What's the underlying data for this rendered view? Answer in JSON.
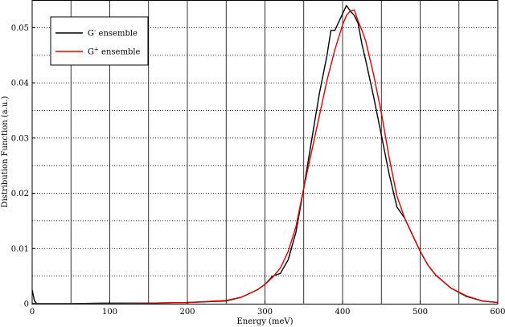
{
  "chart_data": {
    "type": "line",
    "title": "",
    "xlabel": "Energy (meV)",
    "ylabel": "Distribution Function (a.u.)",
    "xlim": [
      0,
      600
    ],
    "ylim": [
      0,
      0.055
    ],
    "x_ticks": [
      0,
      100,
      200,
      300,
      400,
      500,
      600
    ],
    "x_tick_labels": [
      "0",
      "100",
      "200",
      "300",
      "400",
      "500",
      "600"
    ],
    "y_ticks": [
      0,
      0.01,
      0.02,
      0.03,
      0.04,
      0.05
    ],
    "y_tick_labels": [
      "0",
      "0.01",
      "0.02",
      "0.03",
      "0.04",
      "0.05"
    ],
    "grid": true,
    "legend_position": "top-left",
    "series": [
      {
        "name_main": "G",
        "name_sup": "-",
        "name_rest": " ensemble",
        "color": "#000000",
        "x": [
          0,
          3,
          6,
          50,
          90,
          120,
          150,
          200,
          250,
          270,
          290,
          300,
          310,
          320,
          330,
          340,
          350,
          360,
          370,
          380,
          385,
          390,
          395,
          400,
          405,
          410,
          415,
          420,
          425,
          430,
          440,
          450,
          460,
          470,
          480,
          490,
          500,
          510,
          520,
          540,
          560,
          580,
          600
        ],
        "y": [
          0.0025,
          0.0005,
          0.0,
          0.0,
          0.0001,
          0.0001,
          0.0001,
          0.0002,
          0.0005,
          0.0012,
          0.0025,
          0.0035,
          0.005,
          0.0055,
          0.008,
          0.013,
          0.021,
          0.0295,
          0.038,
          0.045,
          0.0495,
          0.0495,
          0.051,
          0.0525,
          0.054,
          0.053,
          0.0522,
          0.0508,
          0.047,
          0.044,
          0.0375,
          0.0305,
          0.0235,
          0.0175,
          0.0155,
          0.0125,
          0.0095,
          0.007,
          0.0052,
          0.0028,
          0.0013,
          0.0005,
          0.0002
        ]
      },
      {
        "name_main": "G",
        "name_sup": "+",
        "name_rest": " ensemble",
        "color": "#e00000",
        "x": [
          0,
          50,
          100,
          150,
          200,
          250,
          270,
          290,
          300,
          310,
          320,
          330,
          340,
          350,
          360,
          370,
          380,
          390,
          400,
          405,
          410,
          415,
          420,
          425,
          430,
          440,
          450,
          460,
          470,
          480,
          490,
          500,
          510,
          520,
          540,
          560,
          580,
          600
        ],
        "y": [
          0.0,
          0.0,
          0.0,
          0.0001,
          0.0002,
          0.0006,
          0.0012,
          0.0025,
          0.0035,
          0.0048,
          0.0065,
          0.0095,
          0.014,
          0.021,
          0.0275,
          0.034,
          0.0405,
          0.046,
          0.0505,
          0.0522,
          0.053,
          0.0532,
          0.0512,
          0.0495,
          0.0475,
          0.0415,
          0.0345,
          0.0265,
          0.0195,
          0.0155,
          0.0125,
          0.0095,
          0.007,
          0.0052,
          0.0028,
          0.0014,
          0.0005,
          0.0002
        ]
      }
    ]
  }
}
